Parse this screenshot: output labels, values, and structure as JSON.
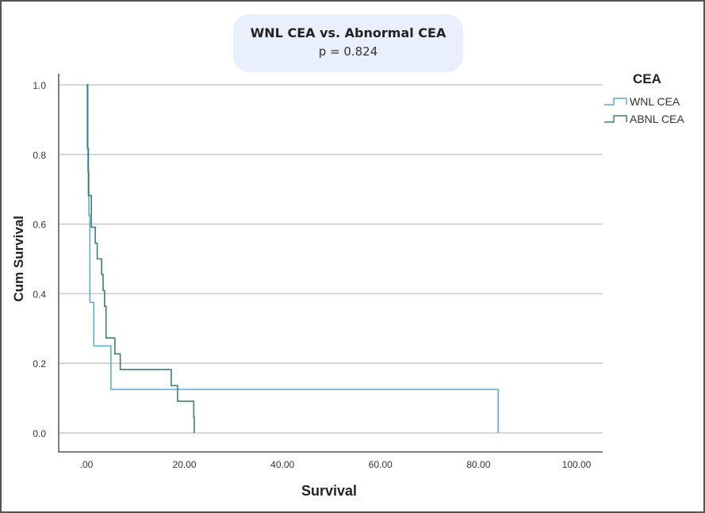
{
  "chart_data": {
    "type": "line",
    "title": "WNL CEA vs. Abnormal CEA",
    "subtitle": "p = 0.824",
    "xlabel": "Survival",
    "ylabel": "Cum Survival",
    "xlim": [
      0,
      100
    ],
    "ylim": [
      0,
      1
    ],
    "xticks": [
      ".00",
      "20.00",
      "40.00",
      "60.00",
      "80.00",
      "100.00"
    ],
    "yticks": [
      "0.0",
      "0.2",
      "0.4",
      "0.6",
      "0.8",
      "1.0"
    ],
    "grid": "horizontal",
    "legend_title": "CEA",
    "legend_position": "right",
    "series": [
      {
        "name": "WNL CEA",
        "color": "#5aaee0",
        "step": true,
        "x": [
          0,
          0.3,
          0.5,
          0.7,
          1.5,
          5.0,
          84.0
        ],
        "y": [
          1.0,
          0.75,
          0.625,
          0.375,
          0.25,
          0.125,
          0.0
        ]
      },
      {
        "name": "ABNL CEA",
        "color": "#3f7f72",
        "step": true,
        "x": [
          0,
          0.2,
          0.4,
          1.0,
          1.8,
          2.2,
          3.1,
          3.4,
          3.7,
          4.0,
          5.8,
          6.9,
          17.3,
          18.6,
          21.9,
          22.0
        ],
        "y": [
          1.0,
          0.818,
          0.682,
          0.591,
          0.545,
          0.5,
          0.455,
          0.409,
          0.364,
          0.273,
          0.227,
          0.182,
          0.136,
          0.091,
          0.045,
          0.0
        ]
      }
    ]
  }
}
